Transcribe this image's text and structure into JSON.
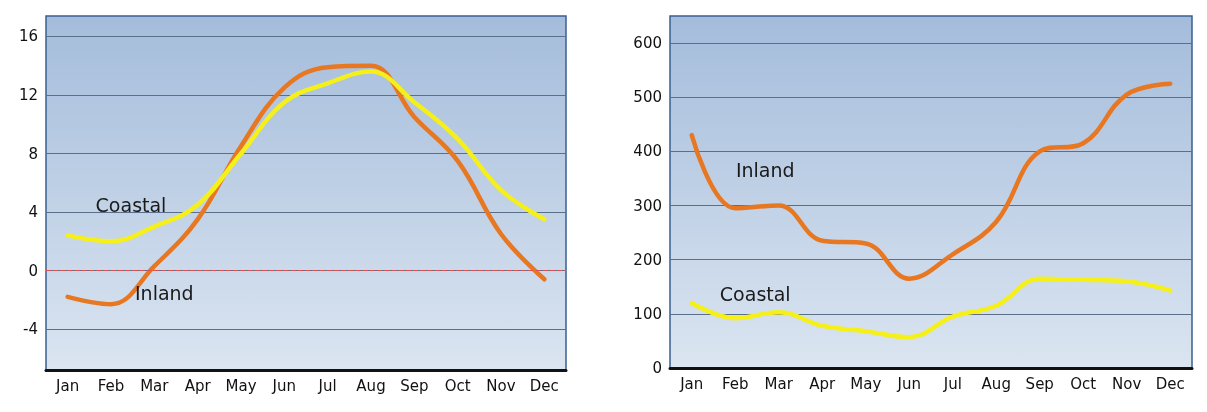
{
  "chart_data": [
    {
      "type": "line",
      "categories": [
        "Jan",
        "Feb",
        "Mar",
        "Apr",
        "May",
        "Jun",
        "Jul",
        "Aug",
        "Sep",
        "Oct",
        "Nov",
        "Dec"
      ],
      "series": [
        {
          "name": "Inland",
          "color": "#e87722",
          "values": [
            -1.8,
            -2.3,
            0.3,
            3.5,
            8.5,
            12.5,
            13.9,
            14.0,
            10.5,
            7.5,
            2.5,
            -0.6
          ]
        },
        {
          "name": "Coastal",
          "color": "#f5ef1a",
          "values": [
            2.4,
            2.0,
            3.0,
            4.5,
            8.0,
            11.5,
            12.8,
            13.6,
            11.5,
            9.0,
            5.5,
            3.5
          ]
        }
      ],
      "ylim": [
        -6.8,
        17.4
      ],
      "yticks": [
        -4,
        0,
        4,
        8,
        12,
        16
      ],
      "grid": "y",
      "legend": false,
      "marker": "none",
      "line_style": "solid",
      "ref_lines": [
        {
          "axis": "y",
          "value": 0,
          "label": null,
          "color": "#e05050",
          "line_style": "dashed"
        }
      ]
    },
    {
      "type": "line",
      "categories": [
        "Jan",
        "Feb",
        "Mar",
        "Apr",
        "May",
        "Jun",
        "Jul",
        "Aug",
        "Sep",
        "Oct",
        "Nov",
        "Dec"
      ],
      "series": [
        {
          "name": "Inland",
          "color": "#e87722",
          "values": [
            430,
            295,
            300,
            235,
            230,
            165,
            210,
            270,
            400,
            415,
            505,
            525
          ]
        },
        {
          "name": "Coastal",
          "color": "#f5ef1a",
          "values": [
            120,
            92,
            103,
            78,
            68,
            57,
            95,
            115,
            165,
            163,
            160,
            143
          ]
        }
      ],
      "ylim": [
        0,
        650
      ],
      "yticks": [
        0,
        100,
        200,
        300,
        400,
        500,
        600
      ],
      "grid": "y",
      "legend": false,
      "marker": "none",
      "line_style": "solid"
    }
  ]
}
